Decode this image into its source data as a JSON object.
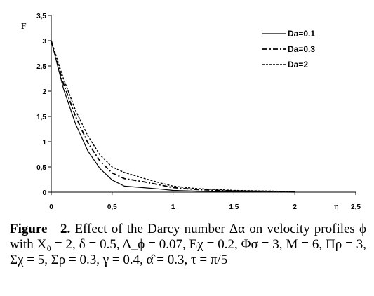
{
  "chart_data": {
    "type": "line",
    "xlabel": "η",
    "ylabel": "F",
    "xlim": [
      0,
      2.5
    ],
    "ylim": [
      0,
      3.5
    ],
    "xticks": [
      "0",
      "0,5",
      "1",
      "1,5",
      "2",
      "2,5"
    ],
    "yticks": [
      "0",
      "0,5",
      "1",
      "1,5",
      "2",
      "2,5",
      "3",
      "3,5"
    ],
    "grid": false,
    "legend_position": "top-right",
    "series": [
      {
        "name": "Da=0.1",
        "style": "solid",
        "x": [
          0,
          0.1,
          0.2,
          0.3,
          0.4,
          0.5,
          0.6,
          0.75,
          0.9,
          1.0,
          1.2,
          1.5,
          2.0
        ],
        "y": [
          3.0,
          2.05,
          1.35,
          0.82,
          0.47,
          0.24,
          0.12,
          0.09,
          0.06,
          0.035,
          0.02,
          0.01,
          0.0
        ]
      },
      {
        "name": "Da=0.3",
        "style": "dash-dot",
        "x": [
          0,
          0.1,
          0.2,
          0.3,
          0.4,
          0.5,
          0.6,
          0.75,
          0.9,
          1.0,
          1.2,
          1.5,
          2.0
        ],
        "y": [
          3.0,
          2.15,
          1.5,
          0.98,
          0.62,
          0.38,
          0.27,
          0.21,
          0.14,
          0.09,
          0.05,
          0.025,
          0.01
        ]
      },
      {
        "name": "Da=2",
        "style": "dotted",
        "x": [
          0,
          0.1,
          0.2,
          0.3,
          0.4,
          0.5,
          0.6,
          0.75,
          0.9,
          1.0,
          1.2,
          1.5,
          2.0
        ],
        "y": [
          3.0,
          2.25,
          1.62,
          1.12,
          0.74,
          0.5,
          0.39,
          0.28,
          0.18,
          0.12,
          0.07,
          0.035,
          0.012
        ]
      }
    ]
  },
  "caption": {
    "label": "Figure",
    "number": "2.",
    "text": "Effect of the Darcy number Δα on velocity profiles ϕ with X₀ = 2, δ = 0.5, Δ_ϕ = 0.07, Eχ = 0.2, Φσ = 3, M = 6, Πρ = 3, Σχ = 5, Σρ = 0.3, γ = 0.4, α̂ = 0.3, τ = π/5"
  }
}
